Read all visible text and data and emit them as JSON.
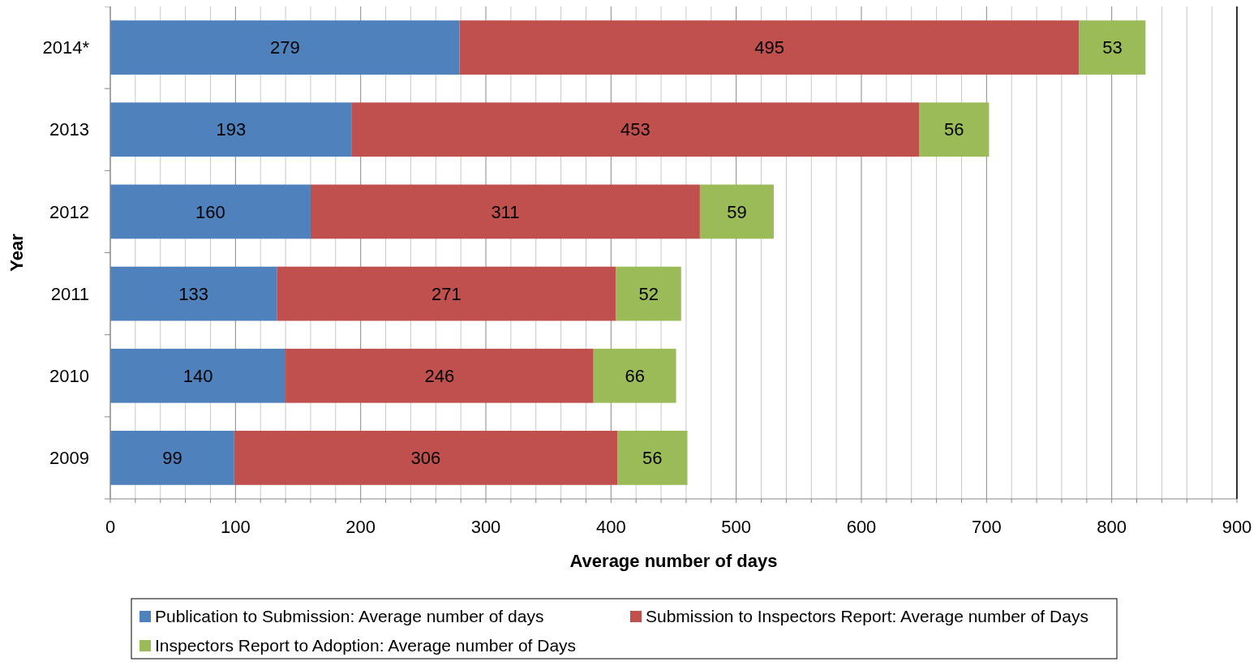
{
  "chart_data": {
    "type": "bar",
    "orientation": "horizontal",
    "stacked": true,
    "xlabel": "Average number of days",
    "ylabel": "Year",
    "categories": [
      "2014*",
      "2013",
      "2012",
      "2011",
      "2010",
      "2009"
    ],
    "series": [
      {
        "name": "Publication to Submission: Average number of days",
        "color": "#4f81bd",
        "values": [
          279,
          193,
          160,
          133,
          140,
          99
        ]
      },
      {
        "name": "Submission to Inspectors Report: Average number of Days",
        "color": "#c0504d",
        "values": [
          495,
          453,
          311,
          271,
          246,
          306
        ]
      },
      {
        "name": "Inspectors Report to Adoption: Average number of Days",
        "color": "#9bbb59",
        "values": [
          53,
          56,
          59,
          52,
          66,
          56
        ]
      }
    ],
    "xlim": [
      0,
      900
    ],
    "xticks": [
      0,
      {
        "value": 20,
        "label": null
      },
      {
        "value": 40,
        "label": null
      },
      {
        "value": 60,
        "label": null
      },
      {
        "value": 80,
        "label": null
      },
      100,
      {
        "value": 120,
        "label": null
      },
      {
        "value": 140,
        "label": null
      },
      {
        "value": 160,
        "label": null
      },
      {
        "value": 180,
        "label": null
      },
      200,
      {
        "value": 220,
        "label": null
      },
      {
        "value": 240,
        "label": null
      },
      {
        "value": 260,
        "label": null
      },
      {
        "value": 280,
        "label": null
      },
      300,
      {
        "value": 320,
        "label": null
      },
      {
        "value": 340,
        "label": null
      },
      {
        "value": 360,
        "label": null
      },
      {
        "value": 380,
        "label": null
      },
      400,
      {
        "value": 420,
        "label": null
      },
      {
        "value": 440,
        "label": null
      },
      {
        "value": 460,
        "label": null
      },
      {
        "value": 480,
        "label": null
      },
      500,
      {
        "value": 520,
        "label": null
      },
      {
        "value": 540,
        "label": null
      },
      {
        "value": 560,
        "label": null
      },
      {
        "value": 580,
        "label": null
      },
      600,
      {
        "value": 620,
        "label": null
      },
      {
        "value": 640,
        "label": null
      },
      {
        "value": 660,
        "label": null
      },
      {
        "value": 680,
        "label": null
      },
      700,
      {
        "value": 720,
        "label": null
      },
      {
        "value": 740,
        "label": null
      },
      {
        "value": 760,
        "label": null
      },
      {
        "value": 780,
        "label": null
      },
      800,
      {
        "value": 820,
        "label": null
      },
      {
        "value": 840,
        "label": null
      },
      {
        "value": 860,
        "label": null
      },
      {
        "value": 880,
        "label": null
      },
      900
    ],
    "grid": "x",
    "legend": "bottom",
    "data_labels": true
  }
}
